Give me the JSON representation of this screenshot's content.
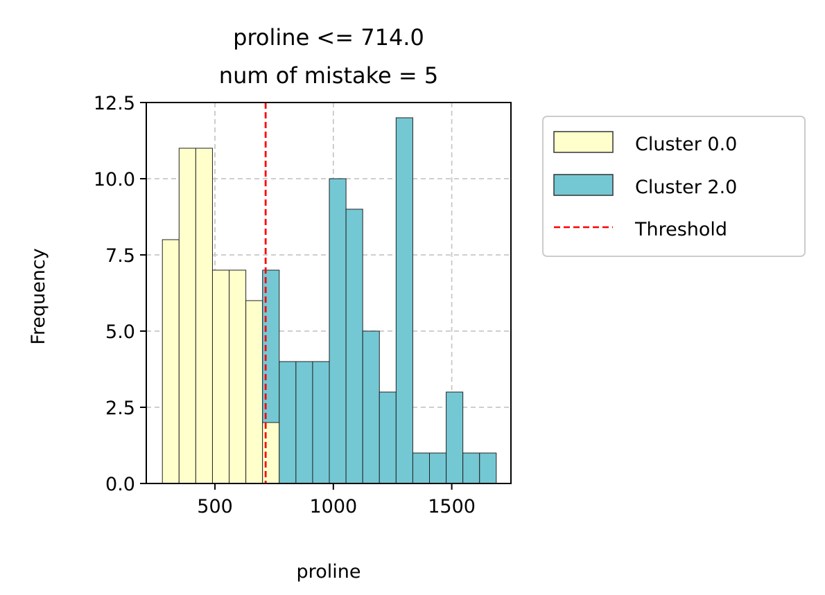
{
  "chart_data": {
    "type": "bar",
    "title": [
      "proline <= 714.0",
      "num of mistake = 5"
    ],
    "xlabel": "proline",
    "ylabel": "Frequency",
    "xlim": [
      210,
      1750
    ],
    "ylim": [
      0,
      12.5
    ],
    "xticks": [
      500,
      1000,
      1500
    ],
    "xtick_labels": [
      "500",
      "1000",
      "1500"
    ],
    "yticks": [
      0,
      2.5,
      5,
      7.5,
      10,
      12.5
    ],
    "ytick_labels": [
      "0.0",
      "2.5",
      "5.0",
      "7.5",
      "10.0",
      "12.5"
    ],
    "grid": true,
    "bin_edges": [
      278,
      348.5,
      419,
      489.5,
      560,
      630.5,
      701,
      771.5,
      842,
      912.5,
      983,
      1053.5,
      1124,
      1194.5,
      1265,
      1335.5,
      1406,
      1476.5,
      1547,
      1617.5,
      1688
    ],
    "series": [
      {
        "name": "Cluster 0.0",
        "color": "#ffffcc",
        "values": [
          8,
          11,
          11,
          7,
          7,
          6,
          2,
          0,
          0,
          0,
          0,
          0,
          0,
          0,
          0,
          0,
          0,
          0,
          0,
          0
        ]
      },
      {
        "name": "Cluster 2.0",
        "color": "#74c8d4",
        "values": [
          0,
          0,
          0,
          0,
          0,
          0,
          5,
          4,
          4,
          4,
          10,
          9,
          5,
          3,
          12,
          1,
          1,
          3,
          1,
          1
        ]
      }
    ],
    "threshold": {
      "name": "Threshold",
      "value": 714.0,
      "color": "#ff0000"
    },
    "legend_placement": "outside-right"
  }
}
